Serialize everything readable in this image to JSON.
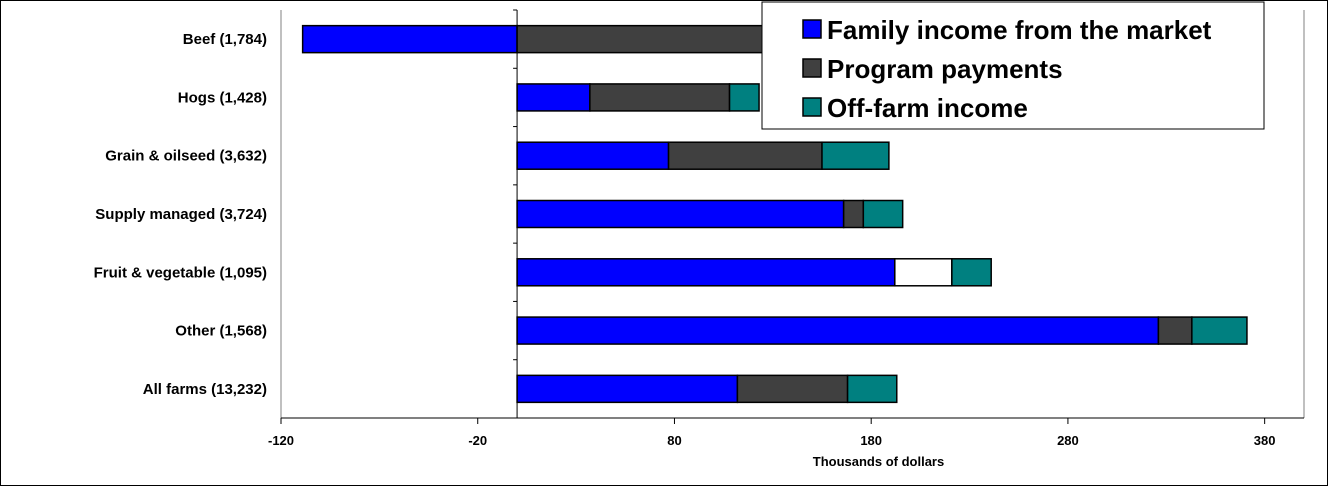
{
  "chart_data": {
    "type": "bar",
    "orientation": "horizontal",
    "stacked": true,
    "categories": [
      "Beef (1,784)",
      "Hogs (1,428)",
      "Grain & oilseed (3,632)",
      "Supply managed (3,724)",
      "Fruit & vegetable (1,095)",
      "Other (1,568)",
      "All farms (13,232)"
    ],
    "segments": [
      [
        {
          "series": 0,
          "value": -109
        },
        {
          "series": 1,
          "value": 200
        }
      ],
      [
        {
          "series": 0,
          "value": 37
        },
        {
          "series": 1,
          "value": 71
        },
        {
          "series": 2,
          "value": 15
        }
      ],
      [
        {
          "series": 0,
          "value": 77
        },
        {
          "series": 1,
          "value": 78
        },
        {
          "series": 2,
          "value": 34
        }
      ],
      [
        {
          "series": 0,
          "value": 166
        },
        {
          "series": 1,
          "value": 10
        },
        {
          "series": 2,
          "value": 20
        }
      ],
      [
        {
          "series": 0,
          "value": 192
        },
        {
          "series": 3,
          "value": 29
        },
        {
          "series": 2,
          "value": 20
        }
      ],
      [
        {
          "series": 0,
          "value": 326
        },
        {
          "series": 1,
          "value": 17
        },
        {
          "series": 2,
          "value": 28
        }
      ],
      [
        {
          "series": 0,
          "value": 112
        },
        {
          "series": 1,
          "value": 56
        },
        {
          "series": 2,
          "value": 25
        }
      ]
    ],
    "series": [
      {
        "name": "Family income from the market",
        "color": "#0000ff",
        "in_legend": true
      },
      {
        "name": "Program payments",
        "color": "#404040",
        "in_legend": true
      },
      {
        "name": "Off-farm income",
        "color": "#008080",
        "in_legend": true
      },
      {
        "name": "",
        "color": "#ffffff",
        "in_legend": false
      }
    ],
    "xlabel": "Thousands of dollars",
    "ylabel": "",
    "title": "",
    "xlim": [
      -120,
      400
    ],
    "xticks": [
      -120,
      -20,
      80,
      180,
      280,
      380
    ],
    "grid": false,
    "legend_position": "top-right"
  }
}
